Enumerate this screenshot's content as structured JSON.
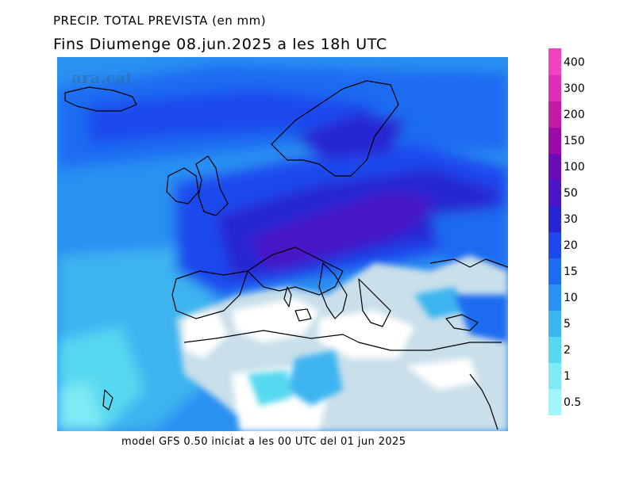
{
  "header": {
    "title": "PRECIP. TOTAL PREVISTA (en mm)",
    "subtitle": "Fins Diumenge 08.jun.2025 a les 18h UTC"
  },
  "footer": {
    "text": "model GFS 0.50 iniciat a les 00 UTC del 01 jun 2025"
  },
  "watermark": "ara.cat",
  "legend": {
    "bins": [
      {
        "label": "0.5",
        "color": "#a0f4fa"
      },
      {
        "label": "1",
        "color": "#7eeaf5"
      },
      {
        "label": "2",
        "color": "#56d8f0"
      },
      {
        "label": "5",
        "color": "#3cb4f0"
      },
      {
        "label": "10",
        "color": "#2a90f2"
      },
      {
        "label": "15",
        "color": "#1e6cf2"
      },
      {
        "label": "20",
        "color": "#1e48ee"
      },
      {
        "label": "30",
        "color": "#2626d2"
      },
      {
        "label": "50",
        "color": "#4a16c8"
      },
      {
        "label": "100",
        "color": "#6a0ab8"
      },
      {
        "label": "150",
        "color": "#9c0aa8"
      },
      {
        "label": "200",
        "color": "#c41aa6"
      },
      {
        "label": "300",
        "color": "#de2eb6"
      },
      {
        "label": "400",
        "color": "#f242c4"
      }
    ]
  },
  "colors": {
    "land_dry": "#c9dfea",
    "sea_dry": "#ffffff",
    "coastline": "#000000"
  }
}
